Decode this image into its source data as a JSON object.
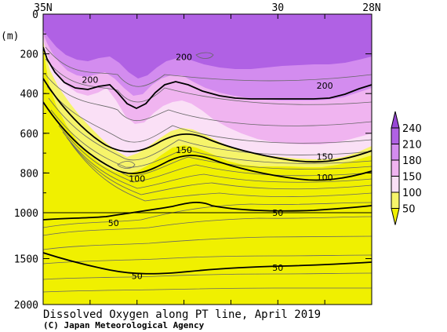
{
  "chart_data": {
    "type": "contour",
    "title": "Dissolved Oxygen along PT line, April 2019",
    "credit": "(C) Japan Meteorological Agency",
    "y_unit_label": "(m)",
    "x_tick_labels": [
      {
        "lat": 35,
        "label": "35N"
      },
      {
        "lat": 30,
        "label": "30"
      },
      {
        "lat": 28,
        "label": "28N"
      }
    ],
    "x_range": [
      35,
      28
    ],
    "y_upper_ticks": [
      {
        "value": 0,
        "label": "0"
      },
      {
        "value": 200,
        "label": "200"
      },
      {
        "value": 400,
        "label": "400"
      },
      {
        "value": 600,
        "label": "600"
      },
      {
        "value": 800,
        "label": "800"
      },
      {
        "value": 1000,
        "label": "1000"
      }
    ],
    "y_lower_ticks": [
      {
        "value": 1500,
        "label": "1500"
      },
      {
        "value": 2000,
        "label": "2000"
      }
    ],
    "y_break_depth": 1000,
    "legend": {
      "levels": [
        "50",
        "100",
        "150",
        "180",
        "210",
        "240"
      ],
      "colors": [
        "#f0f000",
        "#f6f46a",
        "#fae0f6",
        "#f0b4f0",
        "#d38cef",
        "#b061e4",
        "#9846d6"
      ]
    },
    "contour_labels": [
      {
        "text": "200",
        "lat": 34.0,
        "depth": 330
      },
      {
        "text": "200",
        "lat": 32.0,
        "depth": 215
      },
      {
        "text": "200",
        "lat": 29.0,
        "depth": 360
      },
      {
        "text": "150",
        "lat": 32.0,
        "depth": 683
      },
      {
        "text": "150",
        "lat": 29.0,
        "depth": 718
      },
      {
        "text": "100",
        "lat": 33.0,
        "depth": 828
      },
      {
        "text": "100",
        "lat": 29.0,
        "depth": 822
      },
      {
        "text": "50",
        "lat": 30.0,
        "depth": 1000
      },
      {
        "text": "50",
        "lat": 33.5,
        "depth": 1110
      },
      {
        "text": "50",
        "lat": 33.0,
        "depth": 1690
      },
      {
        "text": "50",
        "lat": 30.0,
        "depth": 1600
      }
    ]
  }
}
